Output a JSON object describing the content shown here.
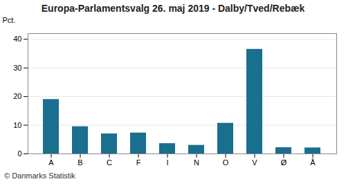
{
  "chart_data": {
    "type": "bar",
    "title": "Europa-Parlamentsvalg 26. maj 2019 - Dalby/Tved/Rebæk",
    "categories": [
      "A",
      "B",
      "C",
      "F",
      "I",
      "N",
      "O",
      "V",
      "Ø",
      "Å"
    ],
    "values": [
      19.0,
      9.5,
      7.0,
      7.3,
      3.6,
      3.0,
      10.7,
      36.5,
      2.2,
      2.1
    ],
    "color": "#1a6e8e",
    "ylabel": "Pct.",
    "ylim": [
      0,
      42
    ],
    "yticks": [
      0,
      10,
      20,
      30,
      40
    ],
    "grid": true,
    "caption": "© Danmarks Statistik"
  }
}
